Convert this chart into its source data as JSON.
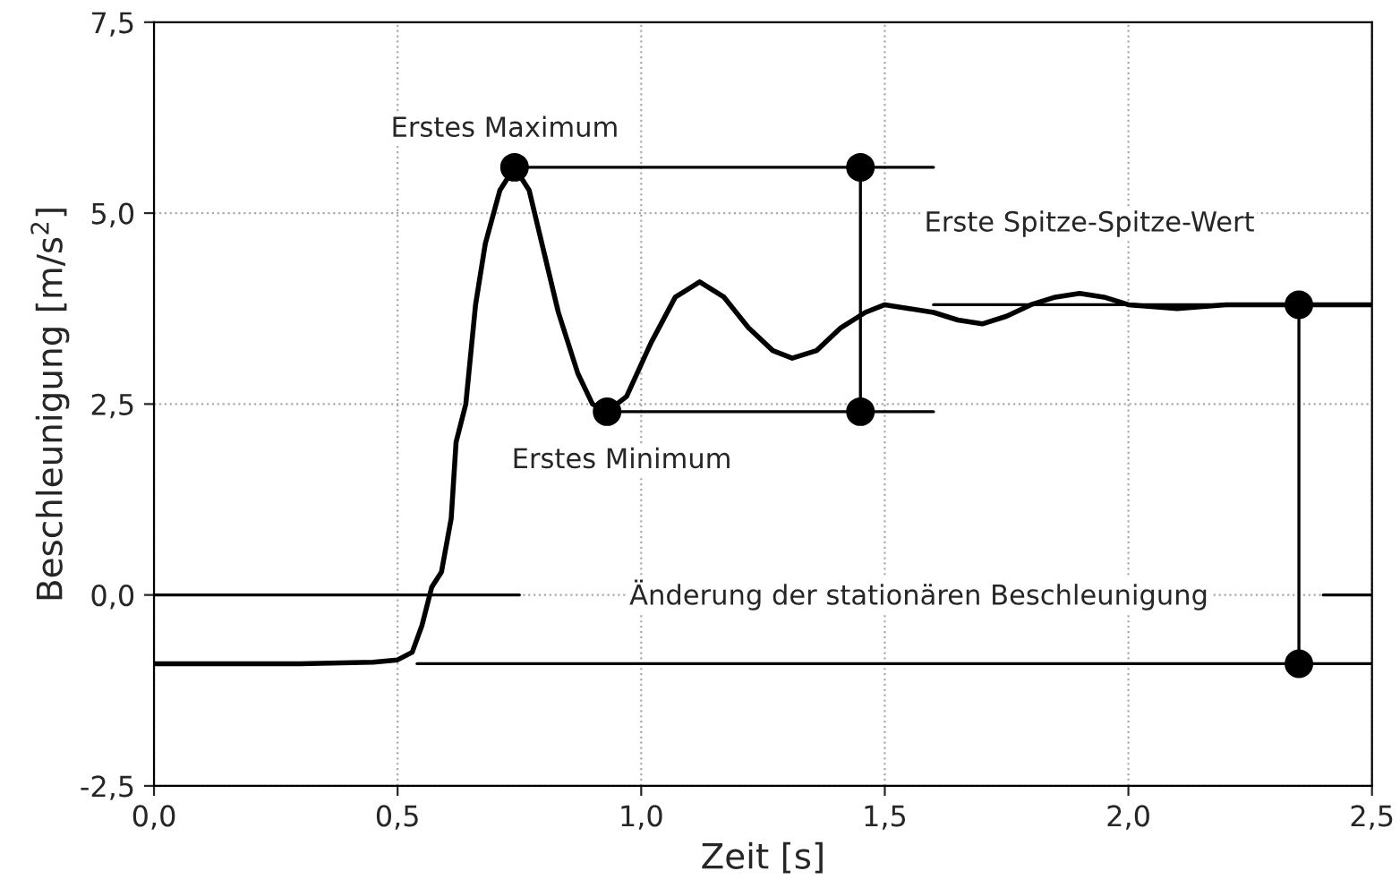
{
  "chart_data": {
    "type": "line",
    "xlabel": "Zeit [s]",
    "ylabel": "Beschleunigung [m/s$^{2}$]",
    "xlim": [
      0,
      2.5
    ],
    "ylim": [
      -2.5,
      7.5
    ],
    "xticks": [
      {
        "value": 0,
        "label": "0,0"
      },
      {
        "value": 0.5,
        "label": "0,5"
      },
      {
        "value": 1.0,
        "label": "1,0"
      },
      {
        "value": 1.5,
        "label": "1,5"
      },
      {
        "value": 2.0,
        "label": "2,0"
      },
      {
        "value": 2.5,
        "label": "2,5"
      }
    ],
    "yticks": [
      {
        "value": -2.5,
        "label": "-2,5"
      },
      {
        "value": 0,
        "label": "0,0"
      },
      {
        "value": 2.5,
        "label": "2,5"
      },
      {
        "value": 5.0,
        "label": "5,0"
      },
      {
        "value": 7.5,
        "label": "7,5"
      }
    ],
    "grid": true,
    "series": [
      {
        "color": "#000000",
        "x": [
          0,
          0.3,
          0.45,
          0.5,
          0.53,
          0.55,
          0.57,
          0.59,
          0.61,
          0.62,
          0.64,
          0.66,
          0.68,
          0.71,
          0.74,
          0.77,
          0.8,
          0.83,
          0.87,
          0.9,
          0.93,
          0.97,
          1.02,
          1.07,
          1.12,
          1.17,
          1.22,
          1.27,
          1.31,
          1.36,
          1.41,
          1.46,
          1.5,
          1.55,
          1.6,
          1.65,
          1.7,
          1.75,
          1.8,
          1.85,
          1.9,
          1.95,
          2.0,
          2.1,
          2.2,
          2.35,
          2.5
        ],
        "values": [
          -0.9,
          -0.9,
          -0.88,
          -0.85,
          -0.75,
          -0.4,
          0.1,
          0.3,
          1.0,
          2.0,
          2.5,
          3.8,
          4.6,
          5.3,
          5.6,
          5.3,
          4.5,
          3.7,
          2.9,
          2.5,
          2.4,
          2.6,
          3.3,
          3.9,
          4.1,
          3.9,
          3.5,
          3.2,
          3.1,
          3.2,
          3.5,
          3.7,
          3.8,
          3.75,
          3.7,
          3.6,
          3.55,
          3.65,
          3.8,
          3.9,
          3.95,
          3.9,
          3.8,
          3.75,
          3.8,
          3.8,
          3.8
        ]
      },
      {
        "type": "line",
        "color": "#000000",
        "x": [
          0.74,
          1.6
        ],
        "values": [
          5.6,
          5.6
        ]
      },
      {
        "type": "line",
        "color": "#000000",
        "x": [
          0.93,
          1.6
        ],
        "values": [
          2.4,
          2.4
        ]
      },
      {
        "type": "line",
        "color": "#000000",
        "x": [
          1.45,
          1.45
        ],
        "values": [
          2.4,
          5.6
        ]
      },
      {
        "type": "line",
        "color": "#000000",
        "x": [
          1.6,
          2.5
        ],
        "values": [
          3.8,
          3.8
        ]
      },
      {
        "type": "line",
        "color": "#000000",
        "x": [
          0.54,
          2.5
        ],
        "values": [
          -0.9,
          -0.9
        ]
      },
      {
        "type": "line",
        "color": "#000000",
        "x": [
          2.35,
          2.35
        ],
        "values": [
          -0.9,
          3.8
        ]
      },
      {
        "type": "line",
        "color": "#000000",
        "x": [
          0,
          0.75
        ],
        "values": [
          0,
          0
        ]
      },
      {
        "type": "line",
        "color": "#000000",
        "x": [
          2.4,
          2.5
        ],
        "values": [
          0,
          0
        ]
      },
      {
        "type": "scatter",
        "color": "#000000",
        "x": [
          0.74,
          1.45,
          0.93,
          1.45,
          2.35,
          2.35
        ],
        "values": [
          5.6,
          5.6,
          2.4,
          2.4,
          3.8,
          -0.9
        ]
      }
    ],
    "annotations": [
      "Erstes Maximum",
      "Erstes Minimum",
      "Erste Spitze-Spitze-Wert",
      "Änderung der stationären Beschleunigung"
    ]
  }
}
